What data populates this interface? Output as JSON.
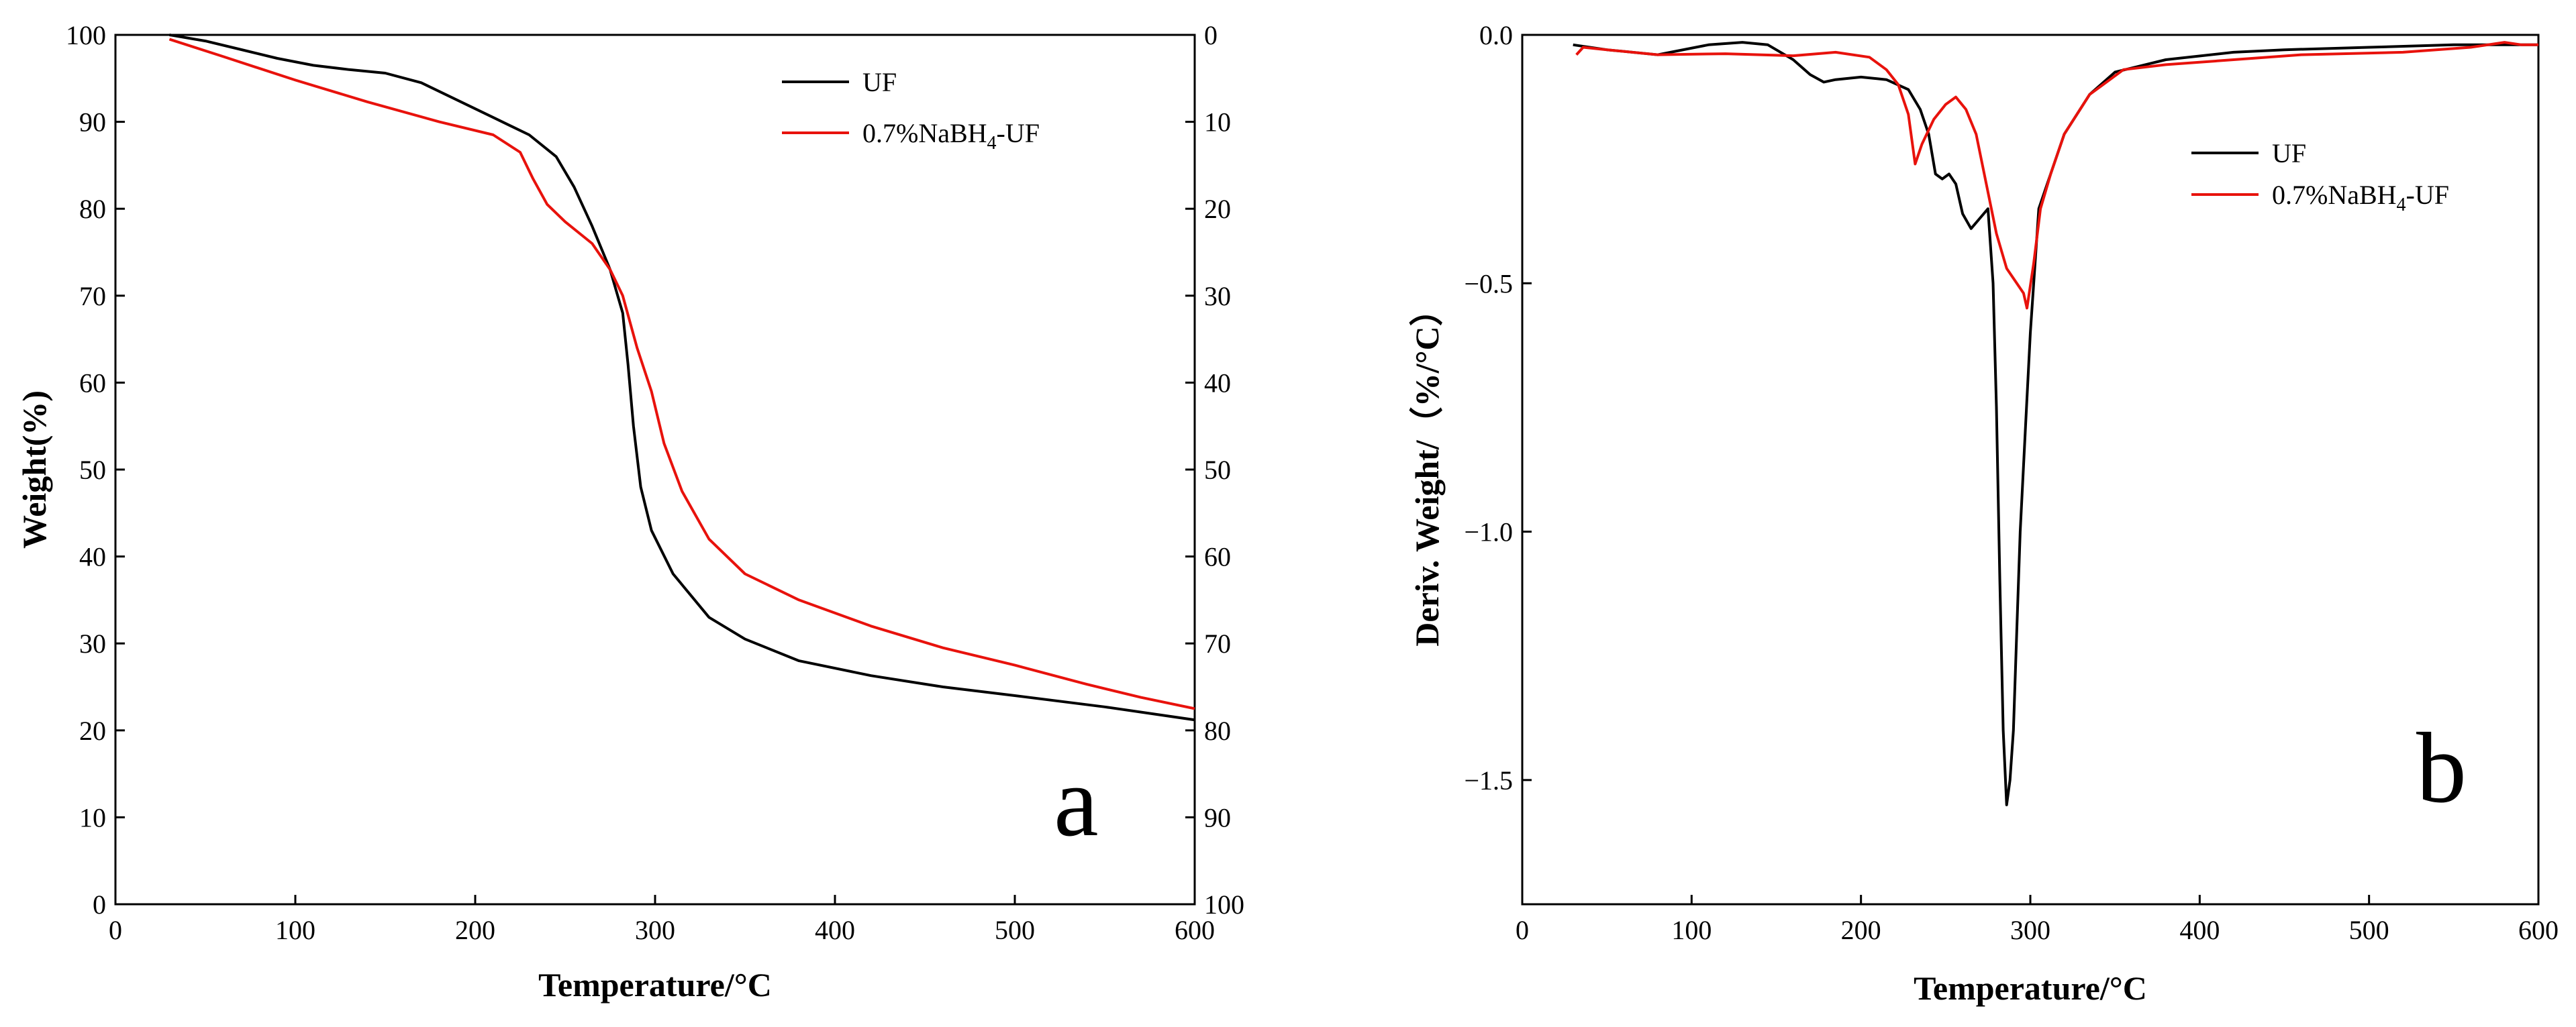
{
  "colors": {
    "uf": "#000000",
    "nabh": "#e8120c",
    "axis": "#000000"
  },
  "chart_data": [
    {
      "type": "line",
      "panel_letter": "a",
      "xlabel": "Temperature/°C",
      "ylabel": "Weight(%)",
      "xlim": [
        0,
        600
      ],
      "ylim": [
        0,
        100
      ],
      "xticks": [
        0,
        100,
        200,
        300,
        400,
        500,
        600
      ],
      "yticks": [
        0,
        10,
        20,
        30,
        40,
        50,
        60,
        70,
        80,
        90,
        100
      ],
      "y2ticks": [
        100,
        90,
        80,
        70,
        60,
        50,
        40,
        30,
        20,
        10,
        0
      ],
      "legend": {
        "position": "top-right",
        "entries": [
          "UF",
          "0.7%NaBH4-UF"
        ]
      },
      "series": [
        {
          "name": "UF",
          "label_main": "UF",
          "color_key": "uf",
          "points": [
            [
              30,
              100
            ],
            [
              50,
              99.3
            ],
            [
              70,
              98.3
            ],
            [
              90,
              97.3
            ],
            [
              110,
              96.5
            ],
            [
              130,
              96
            ],
            [
              150,
              95.6
            ],
            [
              170,
              94.5
            ],
            [
              190,
              92.5
            ],
            [
              210,
              90.5
            ],
            [
              230,
              88.5
            ],
            [
              245,
              86
            ],
            [
              255,
              82.5
            ],
            [
              265,
              78
            ],
            [
              275,
              73
            ],
            [
              282,
              68
            ],
            [
              285,
              62
            ],
            [
              288,
              55
            ],
            [
              292,
              48
            ],
            [
              298,
              43
            ],
            [
              310,
              38
            ],
            [
              330,
              33
            ],
            [
              350,
              30.5
            ],
            [
              380,
              28
            ],
            [
              420,
              26.3
            ],
            [
              460,
              25
            ],
            [
              500,
              24
            ],
            [
              550,
              22.7
            ],
            [
              600,
              21.2
            ]
          ]
        },
        {
          "name": "0.7%NaBH4-UF",
          "label_main": "0.7%NaBH",
          "label_sub": "4",
          "label_tail": "-UF",
          "color_key": "nabh",
          "points": [
            [
              30,
              99.5
            ],
            [
              60,
              97.5
            ],
            [
              100,
              94.8
            ],
            [
              140,
              92.3
            ],
            [
              180,
              90
            ],
            [
              210,
              88.5
            ],
            [
              225,
              86.5
            ],
            [
              232,
              83.5
            ],
            [
              240,
              80.5
            ],
            [
              250,
              78.5
            ],
            [
              265,
              76
            ],
            [
              275,
              73
            ],
            [
              282,
              70
            ],
            [
              290,
              64
            ],
            [
              298,
              59
            ],
            [
              305,
              53
            ],
            [
              315,
              47.5
            ],
            [
              330,
              42
            ],
            [
              350,
              38
            ],
            [
              380,
              35
            ],
            [
              420,
              32
            ],
            [
              460,
              29.5
            ],
            [
              500,
              27.5
            ],
            [
              540,
              25.3
            ],
            [
              570,
              23.8
            ],
            [
              600,
              22.5
            ]
          ]
        }
      ]
    },
    {
      "type": "line",
      "panel_letter": "b",
      "xlabel": "Temperature/°C",
      "ylabel": "Deriv. Weight/（%/°C）",
      "xlim": [
        0,
        600
      ],
      "ylim": [
        -1.75,
        0
      ],
      "xticks": [
        0,
        100,
        200,
        300,
        400,
        500,
        600
      ],
      "yticks": [
        0,
        -0.5,
        -1,
        -1.5
      ],
      "ytick_labels": [
        "0.0",
        "-0.5",
        "-1.0",
        "-1.5"
      ],
      "legend": {
        "position": "top-right",
        "entries": [
          "UF",
          "0.7%NaBH4-UF"
        ]
      },
      "series": [
        {
          "name": "UF",
          "label_main": "UF",
          "color_key": "uf",
          "points": [
            [
              30,
              -0.02
            ],
            [
              50,
              -0.03
            ],
            [
              80,
              -0.04
            ],
            [
              110,
              -0.02
            ],
            [
              130,
              -0.015
            ],
            [
              145,
              -0.02
            ],
            [
              160,
              -0.05
            ],
            [
              170,
              -0.08
            ],
            [
              178,
              -0.095
            ],
            [
              185,
              -0.09
            ],
            [
              200,
              -0.085
            ],
            [
              215,
              -0.09
            ],
            [
              228,
              -0.11
            ],
            [
              235,
              -0.15
            ],
            [
              240,
              -0.2
            ],
            [
              244,
              -0.28
            ],
            [
              248,
              -0.29
            ],
            [
              252,
              -0.28
            ],
            [
              256,
              -0.3
            ],
            [
              260,
              -0.36
            ],
            [
              265,
              -0.39
            ],
            [
              270,
              -0.37
            ],
            [
              275,
              -0.35
            ],
            [
              278,
              -0.5
            ],
            [
              280,
              -0.75
            ],
            [
              282,
              -1.1
            ],
            [
              284,
              -1.4
            ],
            [
              286,
              -1.55
            ],
            [
              288,
              -1.5
            ],
            [
              290,
              -1.4
            ],
            [
              292,
              -1.2
            ],
            [
              294,
              -1.0
            ],
            [
              297,
              -0.8
            ],
            [
              300,
              -0.6
            ],
            [
              305,
              -0.35
            ],
            [
              310,
              -0.3
            ],
            [
              320,
              -0.2
            ],
            [
              335,
              -0.12
            ],
            [
              350,
              -0.075
            ],
            [
              380,
              -0.05
            ],
            [
              420,
              -0.035
            ],
            [
              450,
              -0.03
            ],
            [
              500,
              -0.025
            ],
            [
              550,
              -0.02
            ],
            [
              600,
              -0.02
            ]
          ]
        },
        {
          "name": "0.7%NaBH4-UF",
          "label_main": "0.7%NaBH",
          "label_sub": "4",
          "label_tail": "-UF",
          "color_key": "nabh",
          "points": [
            [
              32,
              -0.04
            ],
            [
              36,
              -0.025
            ],
            [
              50,
              -0.03
            ],
            [
              80,
              -0.04
            ],
            [
              120,
              -0.038
            ],
            [
              160,
              -0.042
            ],
            [
              185,
              -0.035
            ],
            [
              205,
              -0.045
            ],
            [
              215,
              -0.07
            ],
            [
              222,
              -0.1
            ],
            [
              228,
              -0.16
            ],
            [
              232,
              -0.26
            ],
            [
              236,
              -0.22
            ],
            [
              243,
              -0.17
            ],
            [
              250,
              -0.14
            ],
            [
              256,
              -0.125
            ],
            [
              262,
              -0.15
            ],
            [
              268,
              -0.2
            ],
            [
              274,
              -0.3
            ],
            [
              280,
              -0.4
            ],
            [
              286,
              -0.47
            ],
            [
              292,
              -0.5
            ],
            [
              296,
              -0.52
            ],
            [
              298,
              -0.55
            ],
            [
              302,
              -0.46
            ],
            [
              306,
              -0.35
            ],
            [
              312,
              -0.28
            ],
            [
              320,
              -0.2
            ],
            [
              335,
              -0.12
            ],
            [
              355,
              -0.07
            ],
            [
              380,
              -0.06
            ],
            [
              420,
              -0.05
            ],
            [
              460,
              -0.04
            ],
            [
              520,
              -0.035
            ],
            [
              560,
              -0.025
            ],
            [
              580,
              -0.015
            ],
            [
              590,
              -0.02
            ],
            [
              600,
              -0.02
            ]
          ]
        }
      ]
    }
  ]
}
